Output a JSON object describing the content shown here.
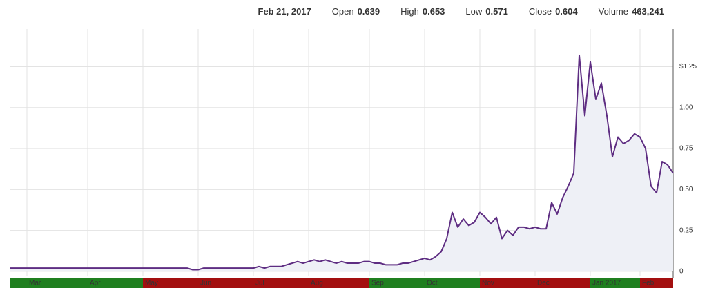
{
  "chart_data": {
    "type": "line",
    "summary": {
      "date": "Feb 21, 2017",
      "items": [
        {
          "label": "Open",
          "value": "0.639"
        },
        {
          "label": "High",
          "value": "0.653"
        },
        {
          "label": "Low",
          "value": "0.571"
        },
        {
          "label": "Close",
          "value": "0.604"
        },
        {
          "label": "Volume",
          "value": "463,241"
        }
      ]
    },
    "categories": [
      null,
      null,
      null,
      "Mar",
      null,
      null,
      null,
      null,
      null,
      null,
      null,
      null,
      null,
      null,
      "Apr",
      null,
      null,
      null,
      null,
      null,
      null,
      null,
      null,
      null,
      "May",
      null,
      null,
      null,
      null,
      null,
      null,
      null,
      null,
      null,
      "Jun",
      null,
      null,
      null,
      null,
      null,
      null,
      null,
      null,
      null,
      "Jul",
      null,
      null,
      null,
      null,
      null,
      null,
      null,
      null,
      null,
      "Aug",
      null,
      null,
      null,
      null,
      null,
      null,
      null,
      null,
      null,
      null,
      "Sep",
      null,
      null,
      null,
      null,
      null,
      null,
      null,
      null,
      null,
      "Oct",
      null,
      null,
      null,
      null,
      null,
      null,
      null,
      null,
      null,
      "Nov",
      null,
      null,
      null,
      null,
      null,
      null,
      null,
      null,
      null,
      "Dec",
      null,
      null,
      null,
      null,
      null,
      null,
      null,
      null,
      null,
      "Jan 2017",
      null,
      null,
      null,
      null,
      null,
      null,
      null,
      null,
      "Feb",
      null,
      null,
      null,
      null,
      null,
      null
    ],
    "values": [
      0.02,
      0.02,
      0.02,
      0.02,
      0.02,
      0.02,
      0.02,
      0.02,
      0.02,
      0.02,
      0.02,
      0.02,
      0.02,
      0.02,
      0.02,
      0.02,
      0.02,
      0.02,
      0.02,
      0.02,
      0.02,
      0.02,
      0.02,
      0.02,
      0.02,
      0.02,
      0.02,
      0.02,
      0.02,
      0.02,
      0.02,
      0.02,
      0.02,
      0.01,
      0.01,
      0.02,
      0.02,
      0.02,
      0.02,
      0.02,
      0.02,
      0.02,
      0.02,
      0.02,
      0.02,
      0.03,
      0.02,
      0.03,
      0.03,
      0.03,
      0.04,
      0.05,
      0.06,
      0.05,
      0.06,
      0.07,
      0.06,
      0.07,
      0.06,
      0.05,
      0.06,
      0.05,
      0.05,
      0.05,
      0.06,
      0.06,
      0.05,
      0.05,
      0.04,
      0.04,
      0.04,
      0.05,
      0.05,
      0.06,
      0.07,
      0.08,
      0.07,
      0.09,
      0.12,
      0.2,
      0.36,
      0.27,
      0.32,
      0.28,
      0.3,
      0.36,
      0.33,
      0.29,
      0.33,
      0.2,
      0.25,
      0.22,
      0.27,
      0.27,
      0.26,
      0.27,
      0.26,
      0.26,
      0.42,
      0.35,
      0.45,
      0.52,
      0.6,
      1.32,
      0.95,
      1.28,
      1.05,
      1.15,
      0.95,
      0.7,
      0.82,
      0.78,
      0.8,
      0.84,
      0.82,
      0.75,
      0.52,
      0.48,
      0.67,
      0.65,
      0.6
    ],
    "color": "#5e2d82",
    "month_colors": [
      "#1f7f1f",
      "#1f7f1f",
      "#1f7f1f",
      "#a30f0f",
      "#a30f0f",
      "#a30f0f",
      "#a30f0f",
      "#1f7f1f",
      "#1f7f1f",
      "#a30f0f",
      "#a30f0f",
      "#1f7f1f",
      "#a30f0f"
    ],
    "ylim": [
      -0.03,
      1.48
    ],
    "yticks": [
      0,
      0.25,
      {
        "value": 0.5,
        "label": "0.50"
      },
      0.75,
      {
        "value": 1,
        "label": "1.00"
      },
      {
        "value": 1.25,
        "label": "$1.25"
      }
    ],
    "grid": true
  }
}
